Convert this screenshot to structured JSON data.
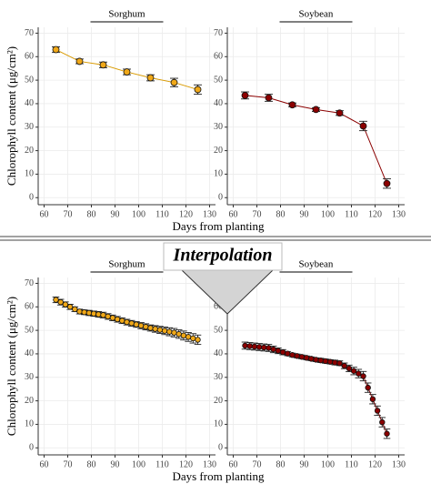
{
  "chart_data": [
    {
      "type": "scatter",
      "y_label": "Chlorophyll content (μg/cm²)",
      "x_label": "Days from planting",
      "xlim": [
        57.5,
        132.5
      ],
      "ylim": [
        -3,
        72.5
      ],
      "xticks": [
        60,
        70,
        80,
        90,
        100,
        110,
        120,
        130
      ],
      "yticks": [
        0,
        10,
        20,
        30,
        40,
        50,
        60,
        70
      ],
      "grid": true,
      "facets": [
        {
          "title": "Sorghum",
          "color": "#f0a818",
          "line_color": "#d99a00",
          "x": [
            65,
            75,
            85,
            95,
            105,
            115,
            125
          ],
          "values": [
            63,
            58,
            56.5,
            53.5,
            51,
            49,
            46
          ],
          "errors": [
            1.2,
            1,
            1.2,
            1.2,
            1.3,
            1.8,
            2
          ]
        },
        {
          "title": "Soybean",
          "color": "#8b0000",
          "line_color": "#8b0000",
          "x": [
            65,
            75,
            85,
            95,
            105,
            115,
            125
          ],
          "values": [
            43.5,
            42.5,
            39.5,
            37.5,
            36,
            30.5,
            6
          ],
          "errors": [
            1.5,
            1.5,
            0.8,
            0.8,
            1,
            2,
            2
          ]
        }
      ]
    },
    {
      "type": "scatter",
      "y_label": "Chlorophyll content (μg/cm²)",
      "x_label": "Days from planting",
      "xlim": [
        57.5,
        132.5
      ],
      "ylim": [
        -3,
        72.5
      ],
      "xticks": [
        60,
        70,
        80,
        90,
        100,
        110,
        120,
        130
      ],
      "yticks": [
        0,
        10,
        20,
        30,
        40,
        50,
        60,
        70
      ],
      "grid": true,
      "facets": [
        {
          "title": "Sorghum",
          "color": "#f0a818",
          "line_color": "#d99a00",
          "x": [
            65,
            67,
            69,
            71,
            73,
            75,
            77,
            79,
            81,
            83,
            85,
            87,
            89,
            91,
            93,
            95,
            97,
            99,
            101,
            103,
            105,
            107,
            109,
            111,
            113,
            115,
            117,
            119,
            121,
            123,
            125
          ],
          "values": [
            63,
            62,
            61,
            60,
            59,
            58,
            57.7,
            57.4,
            57.1,
            56.8,
            56.5,
            55.9,
            55.3,
            54.7,
            54.1,
            53.5,
            53,
            52.5,
            52,
            51.5,
            51,
            50.6,
            50.2,
            49.8,
            49.4,
            49,
            48.4,
            47.8,
            47.2,
            46.6,
            46
          ],
          "errors": [
            1.2,
            1.2,
            1.1,
            1.1,
            1,
            1,
            1,
            1.1,
            1.1,
            1.2,
            1.2,
            1.2,
            1.2,
            1.2,
            1.2,
            1.2,
            1.2,
            1.2,
            1.3,
            1.3,
            1.3,
            1.4,
            1.5,
            1.6,
            1.7,
            1.8,
            1.8,
            1.9,
            1.9,
            2,
            2
          ]
        },
        {
          "title": "Soybean",
          "color": "#8b0000",
          "line_color": "#8b0000",
          "x": [
            65,
            67,
            69,
            71,
            73,
            75,
            77,
            79,
            81,
            83,
            85,
            87,
            89,
            91,
            93,
            95,
            97,
            99,
            101,
            103,
            105,
            107,
            109,
            111,
            113,
            115,
            117,
            119,
            121,
            123,
            125
          ],
          "values": [
            43.5,
            43.3,
            43.1,
            42.9,
            42.7,
            42.5,
            41.9,
            41.3,
            40.7,
            40.1,
            39.5,
            39.1,
            38.7,
            38.3,
            37.9,
            37.5,
            37.2,
            36.9,
            36.6,
            36.3,
            36,
            34.9,
            33.8,
            32.7,
            31.6,
            30.5,
            25.6,
            20.7,
            15.8,
            10.9,
            6
          ],
          "errors": [
            1.5,
            1.5,
            1.5,
            1.5,
            1.5,
            1.5,
            1.4,
            1.2,
            1.1,
            0.9,
            0.8,
            0.8,
            0.8,
            0.8,
            0.8,
            0.8,
            0.9,
            0.9,
            0.9,
            1,
            1,
            1.2,
            1.4,
            1.6,
            1.8,
            2,
            2,
            2,
            2,
            2,
            2
          ]
        }
      ]
    }
  ],
  "annotation": "Interpolation"
}
